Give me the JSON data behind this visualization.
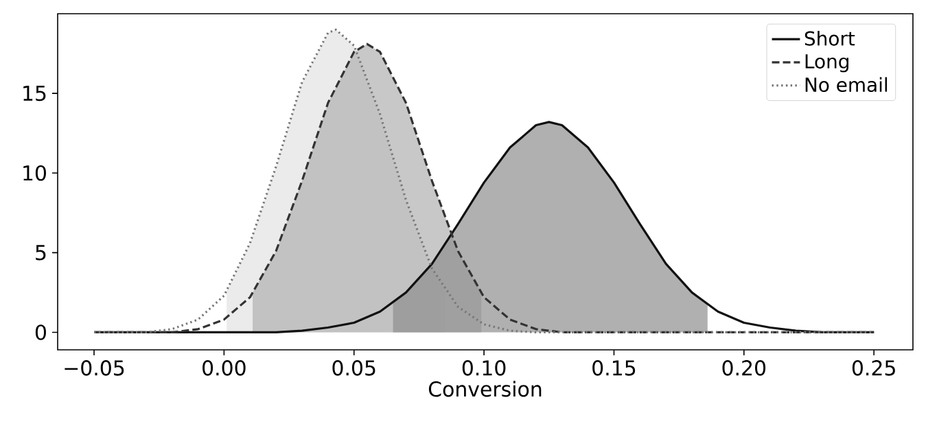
{
  "chart_data": {
    "type": "line",
    "xlabel": "Conversion",
    "xlim": [
      -0.064,
      0.265
    ],
    "ylim": [
      -1.1,
      20
    ],
    "xticks": [
      {
        "value": -0.05,
        "label": "−0.05"
      },
      {
        "value": 0,
        "label": "0.00"
      },
      {
        "value": 0.05,
        "label": "0.05"
      },
      {
        "value": 0.1,
        "label": "0.10"
      },
      {
        "value": 0.15,
        "label": "0.15"
      },
      {
        "value": 0.2,
        "label": "0.20"
      },
      {
        "value": 0.25,
        "label": "0.25"
      }
    ],
    "yticks": [
      0,
      5,
      10,
      15
    ],
    "legend": "top right",
    "grid": false,
    "marker": "none",
    "series": [
      {
        "type": "area",
        "color": "#e3e3e3",
        "x": [
          0.001,
          0.01,
          0.02,
          0.03,
          0.04,
          0.043,
          0.05,
          0.06,
          0.07,
          0.08,
          0.085
        ],
        "values": [
          2.6,
          5.6,
          10.4,
          15.7,
          18.8,
          19.0,
          18.0,
          13.7,
          8.3,
          4.0,
          2.6
        ]
      },
      {
        "type": "area",
        "color": "#b1b1b1",
        "x": [
          0.011,
          0.02,
          0.03,
          0.04,
          0.05,
          0.055,
          0.06,
          0.07,
          0.08,
          0.09,
          0.099
        ],
        "values": [
          2.5,
          5.1,
          9.5,
          14.4,
          17.6,
          18.1,
          17.6,
          14.4,
          9.5,
          5.1,
          2.5
        ]
      },
      {
        "type": "area",
        "color": "#8f8f8f",
        "x": [
          0.065,
          0.07,
          0.08,
          0.09,
          0.1,
          0.11,
          0.12,
          0.125,
          0.13,
          0.14,
          0.15,
          0.16,
          0.17,
          0.18,
          0.186
        ],
        "values": [
          1.9,
          2.5,
          4.3,
          6.8,
          9.4,
          11.6,
          13.0,
          13.2,
          13.0,
          11.6,
          9.4,
          6.8,
          4.3,
          2.5,
          1.8
        ]
      },
      {
        "name": "Short",
        "color": "#111111",
        "line_style": "solid",
        "x": [
          -0.05,
          -0.04,
          -0.03,
          -0.02,
          -0.01,
          0.0,
          0.01,
          0.02,
          0.03,
          0.04,
          0.05,
          0.06,
          0.07,
          0.08,
          0.09,
          0.1,
          0.11,
          0.12,
          0.125,
          0.13,
          0.14,
          0.15,
          0.16,
          0.17,
          0.18,
          0.19,
          0.2,
          0.21,
          0.22,
          0.23,
          0.24,
          0.25
        ],
        "values": [
          0,
          0,
          0,
          0,
          0,
          0,
          0,
          0,
          0.1,
          0.3,
          0.6,
          1.3,
          2.5,
          4.3,
          6.8,
          9.4,
          11.6,
          13.0,
          13.2,
          13.0,
          11.6,
          9.4,
          6.8,
          4.3,
          2.5,
          1.3,
          0.6,
          0.3,
          0.1,
          0,
          0,
          0
        ]
      },
      {
        "name": "Long",
        "color": "#333333",
        "line_style": "dashed",
        "x": [
          -0.05,
          -0.04,
          -0.03,
          -0.02,
          -0.01,
          0.0,
          0.01,
          0.02,
          0.03,
          0.04,
          0.05,
          0.055,
          0.06,
          0.07,
          0.08,
          0.09,
          0.1,
          0.11,
          0.12,
          0.13,
          0.14,
          0.15,
          0.2,
          0.25
        ],
        "values": [
          0,
          0,
          0,
          0,
          0.2,
          0.8,
          2.2,
          5.1,
          9.5,
          14.4,
          17.6,
          18.1,
          17.6,
          14.4,
          9.5,
          5.1,
          2.2,
          0.8,
          0.2,
          0,
          0,
          0,
          0,
          0
        ]
      },
      {
        "name": "No email",
        "color": "#777777",
        "line_style": "dotted",
        "x": [
          -0.05,
          -0.04,
          -0.03,
          -0.02,
          -0.01,
          0.0,
          0.01,
          0.02,
          0.03,
          0.04,
          0.043,
          0.05,
          0.06,
          0.07,
          0.08,
          0.09,
          0.1,
          0.11,
          0.12,
          0.13,
          0.2,
          0.25
        ],
        "values": [
          0,
          0,
          0,
          0.2,
          0.8,
          2.3,
          5.6,
          10.4,
          15.7,
          18.8,
          19.0,
          18.0,
          13.7,
          8.3,
          4.0,
          1.6,
          0.5,
          0.1,
          0,
          0,
          0,
          0
        ]
      }
    ]
  }
}
